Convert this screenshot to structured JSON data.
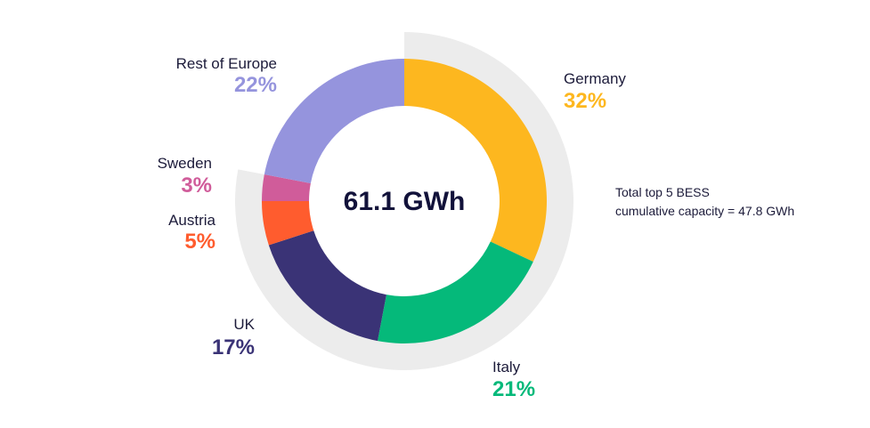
{
  "chart_data": {
    "type": "donut",
    "center_label": "61.1 GWh",
    "note_lines": [
      "Total top 5 BESS",
      "cumulative capacity = 47.8 GWh"
    ],
    "highlight_arc": {
      "covers": [
        "Germany",
        "Italy",
        "UK",
        "Austria",
        "Sweden"
      ],
      "color": "#ececec"
    },
    "segments": [
      {
        "name": "Germany",
        "value": 32,
        "label": "32%",
        "color": "#fdb71f"
      },
      {
        "name": "Italy",
        "value": 21,
        "label": "21%",
        "color": "#05b97a"
      },
      {
        "name": "UK",
        "value": 17,
        "label": "17%",
        "color": "#3a3376"
      },
      {
        "name": "Austria",
        "value": 5,
        "label": "5%",
        "color": "#ff5c2e"
      },
      {
        "name": "Sweden",
        "value": 3,
        "label": "3%",
        "color": "#d05c9a"
      },
      {
        "name": "Rest of Europe",
        "value": 22,
        "label": "22%",
        "color": "#9594dd"
      }
    ]
  }
}
